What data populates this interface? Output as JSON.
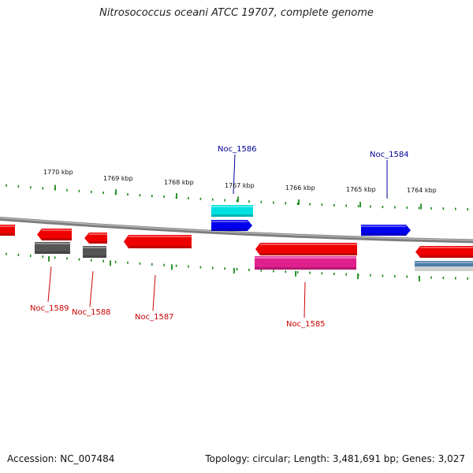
{
  "title": "Nitrosococcus oceani ATCC 19707, complete genome",
  "footer": {
    "accession": "Accession: NC_007484",
    "summary": "Topology: circular; Length: 3,481,691 bp; Genes: 3,027"
  },
  "colors": {
    "backbone": "#8a8a8a",
    "tick": "#1a8a1a",
    "gene_red": "#ee0000",
    "gene_blue": "#0000ee",
    "gene_cyan": "#00e0e0",
    "gene_magenta": "#e0208c",
    "gene_gray": "#555555",
    "gene_steel": "#4a7ea8",
    "label_red": "#cc0000",
    "label_blue": "#000099"
  },
  "ticks": [
    {
      "label": "1770 kbp"
    },
    {
      "label": "1769 kbp"
    },
    {
      "label": "1768 kbp"
    },
    {
      "label": "1767 kbp"
    },
    {
      "label": "1766 kbp"
    },
    {
      "label": "1765 kbp"
    },
    {
      "label": "1764 kbp"
    }
  ],
  "gene_labels": [
    {
      "text": "Noc_1586",
      "color": "blue"
    },
    {
      "text": "Noc_1584",
      "color": "blue"
    },
    {
      "text": "Noc_1589",
      "color": "red"
    },
    {
      "text": "Noc_1588",
      "color": "red"
    },
    {
      "text": "Noc_1587",
      "color": "red"
    },
    {
      "text": "Noc_1585",
      "color": "red"
    }
  ]
}
